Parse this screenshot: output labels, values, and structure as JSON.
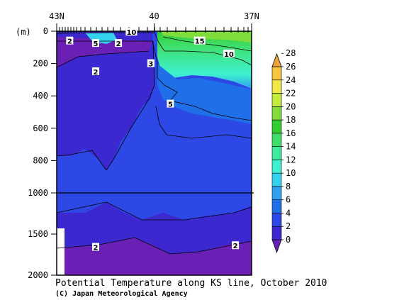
{
  "chart_data": {
    "type": "heatmap",
    "title": "Potential Temperature along KS line, October 2010",
    "credit": "(C) Japan Meteorological Agency",
    "x_axis": {
      "range_lat": [
        43,
        37
      ],
      "ticks": [
        "43N",
        "40",
        "37N"
      ]
    },
    "y_axis": {
      "unit": "(m)",
      "range": [
        0,
        2000
      ],
      "ticks": [
        0,
        200,
        400,
        600,
        800,
        1000,
        1500,
        2000
      ],
      "break_at": 1000,
      "note": "upper 0-1000 m stretched; 1000-2000 m compressed"
    },
    "colorbar": {
      "levels": [
        0,
        2,
        4,
        6,
        8,
        10,
        12,
        14,
        16,
        18,
        20,
        22,
        24,
        26,
        28
      ],
      "colors": [
        "#6a1fb5",
        "#3b29cf",
        "#2e48e6",
        "#1f6fe8",
        "#2f9ff0",
        "#35d2f0",
        "#3ef0cf",
        "#3fe9a0",
        "#3fde6a",
        "#33cc33",
        "#80dc3a",
        "#c4ec3f",
        "#efe846",
        "#f5c542",
        "#f0a23c"
      ],
      "tick_labels": [
        "0",
        "2",
        "4",
        "6",
        "8",
        "10",
        "12",
        "14",
        "16",
        "18",
        "20",
        "22",
        "24",
        "26",
        "28"
      ]
    },
    "contour_labels": [
      {
        "text": "10",
        "lat": 40.7,
        "depth": 5
      },
      {
        "text": "15",
        "lat": 38.6,
        "depth": 60
      },
      {
        "text": "10",
        "lat": 37.7,
        "depth": 140
      },
      {
        "text": "5",
        "lat": 41.8,
        "depth": 75
      },
      {
        "text": "2",
        "lat": 42.6,
        "depth": 60
      },
      {
        "text": "2",
        "lat": 41.1,
        "depth": 75
      },
      {
        "text": "2",
        "lat": 41.8,
        "depth": 250
      },
      {
        "text": "3",
        "lat": 40.1,
        "depth": 200
      },
      {
        "text": "5",
        "lat": 39.5,
        "depth": 450
      },
      {
        "text": "2",
        "lat": 41.8,
        "depth": 1660
      },
      {
        "text": "2",
        "lat": 37.5,
        "depth": 1640
      }
    ]
  }
}
